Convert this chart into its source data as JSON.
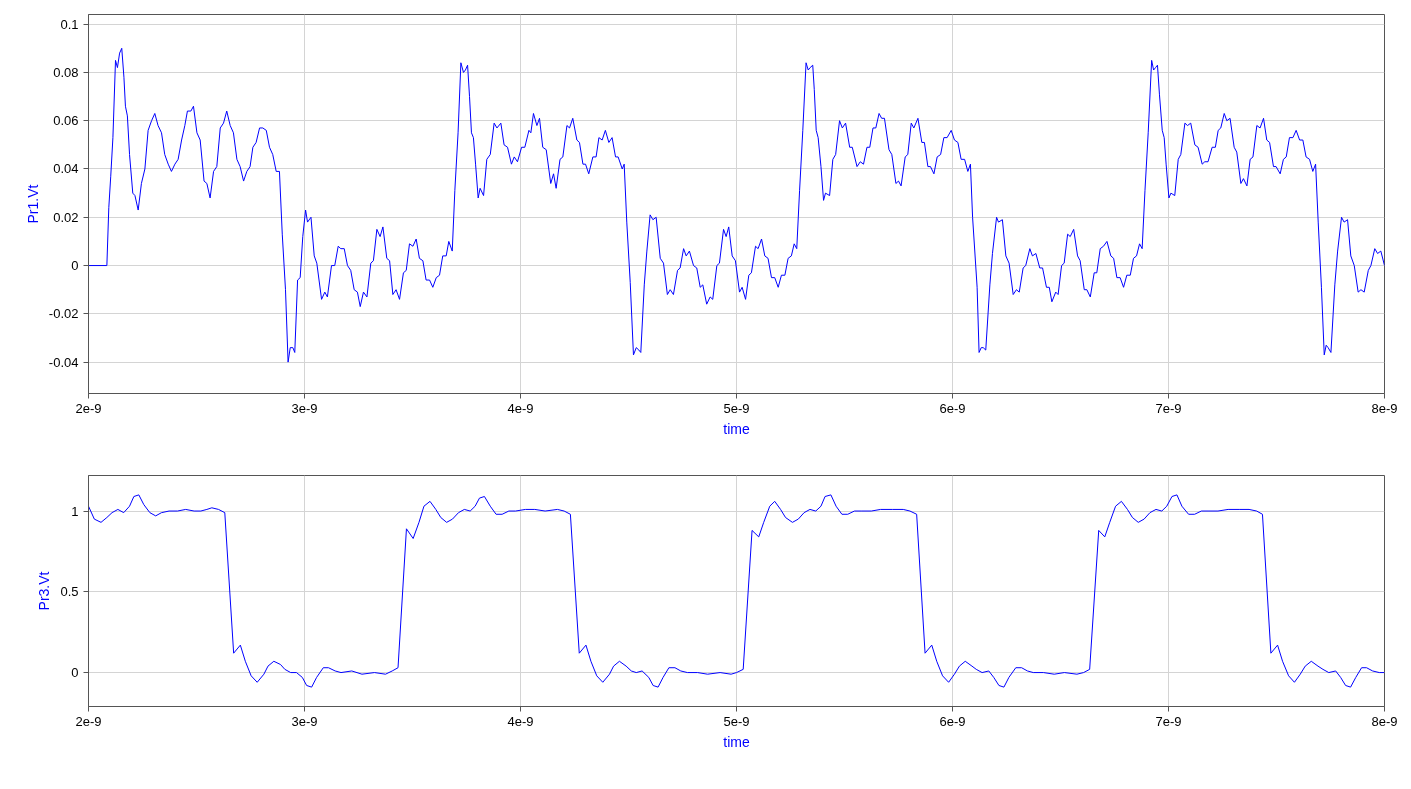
{
  "chart_data": [
    {
      "type": "line",
      "xlabel": "time",
      "ylabel": "Pr1.Vt",
      "x": [
        2e-09,
        2.085e-09,
        2.094e-09,
        2.103e-09,
        2.113e-09,
        2.125e-09,
        2.134e-09,
        2.144e-09,
        2.154e-09,
        2.164e-09,
        2.171e-09,
        2.18e-09,
        2.19e-09,
        2.205e-09,
        2.215e-09,
        2.23e-09,
        2.245e-09,
        2.261e-09,
        2.276e-09,
        2.292e-09,
        2.307e-09,
        2.322e-09,
        2.338e-09,
        2.353e-09,
        2.369e-09,
        2.384e-09,
        2.4e-09,
        2.415e-09,
        2.431e-09,
        2.446e-09,
        2.458e-09,
        2.474e-09,
        2.486e-09,
        2.502e-09,
        2.517e-09,
        2.535e-09,
        2.548e-09,
        2.563e-09,
        2.579e-09,
        2.594e-09,
        2.61e-09,
        2.625e-09,
        2.64e-09,
        2.656e-09,
        2.671e-09,
        2.687e-09,
        2.702e-09,
        2.718e-09,
        2.733e-09,
        2.748e-09,
        2.761e-09,
        2.776e-09,
        2.792e-09,
        2.807e-09,
        2.823e-09,
        2.838e-09,
        2.853e-09,
        2.869e-09,
        2.884e-09,
        2.897e-09,
        2.912e-09,
        2.924e-09,
        2.934e-09,
        2.946e-09,
        2.955e-09,
        2.968e-09,
        2.98e-09,
        2.992e-09,
        3.005e-09,
        3.014e-09,
        3.03e-09,
        3.045e-09,
        3.057e-09,
        3.079e-09,
        3.094e-09,
        3.106e-09,
        3.125e-09,
        3.14e-09,
        3.156e-09,
        3.168e-09,
        3.184e-09,
        3.199e-09,
        3.214e-09,
        3.23e-09,
        3.245e-09,
        3.258e-09,
        3.273e-09,
        3.289e-09,
        3.307e-09,
        3.319e-09,
        3.335e-09,
        3.35e-09,
        3.363e-09,
        3.381e-09,
        3.394e-09,
        3.409e-09,
        3.424e-09,
        3.44e-09,
        3.458e-09,
        3.471e-09,
        3.486e-09,
        3.502e-09,
        3.517e-09,
        3.532e-09,
        3.548e-09,
        3.563e-09,
        3.579e-09,
        3.594e-09,
        3.61e-09,
        3.625e-09,
        3.64e-09,
        3.656e-09,
        3.668e-09,
        3.684e-09,
        3.696e-09,
        3.711e-09,
        3.724e-09,
        3.736e-09,
        3.745e-09,
        3.755e-09,
        3.764e-09,
        3.773e-09,
        3.782e-09,
        3.792e-09,
        3.804e-09,
        3.813e-09,
        3.829e-09,
        3.844e-09,
        3.86e-09,
        3.878e-09,
        3.891e-09,
        3.909e-09,
        3.924e-09,
        3.94e-09,
        3.958e-09,
        3.971e-09,
        3.986e-09,
        4.005e-09,
        4.02e-09,
        4.039e-09,
        4.048e-09,
        4.06e-09,
        4.076e-09,
        4.088e-09,
        4.103e-09,
        4.119e-09,
        4.14e-09,
        4.153e-09,
        4.165e-09,
        4.183e-09,
        4.196e-09,
        4.215e-09,
        4.227e-09,
        4.242e-09,
        4.261e-09,
        4.273e-09,
        4.289e-09,
        4.301e-09,
        4.316e-09,
        4.335e-09,
        4.35e-09,
        4.363e-09,
        4.378e-09,
        4.393e-09,
        4.409e-09,
        4.424e-09,
        4.44e-09,
        4.452e-09,
        4.471e-09,
        4.48e-09,
        4.492e-09,
        4.508e-09,
        4.523e-09,
        4.536e-09,
        4.548e-09,
        4.557e-09,
        4.573e-09,
        4.585e-09,
        4.6e-09,
        4.613e-09,
        4.628e-09,
        4.647e-09,
        4.662e-09,
        4.68e-09,
        4.693e-09,
        4.708e-09,
        4.727e-09,
        4.739e-09,
        4.755e-09,
        4.767e-09,
        4.782e-09,
        4.801e-09,
        4.816e-09,
        4.832e-09,
        4.844e-09,
        4.862e-09,
        4.878e-09,
        4.89e-09,
        4.909e-09,
        4.921e-09,
        4.94e-09,
        4.952e-09,
        4.964e-09,
        4.98e-09,
        4.995e-09,
        5.014e-09,
        5.026e-09,
        5.042e-09,
        5.057e-09,
        5.069e-09,
        5.088e-09,
        5.1e-09,
        5.116e-09,
        5.131e-09,
        5.146e-09,
        5.162e-09,
        5.177e-09,
        5.193e-09,
        5.208e-09,
        5.224e-09,
        5.239e-09,
        5.254e-09,
        5.267e-09,
        5.279e-09,
        5.292e-09,
        5.307e-09,
        5.322e-09,
        5.332e-09,
        5.341e-09,
        5.353e-09,
        5.36e-09,
        5.369e-09,
        5.378e-09,
        5.391e-09,
        5.403e-09,
        5.412e-09,
        5.431e-09,
        5.446e-09,
        5.459e-09,
        5.477e-09,
        5.49e-09,
        5.505e-09,
        5.524e-09,
        5.536e-09,
        5.558e-09,
        5.573e-09,
        5.588e-09,
        5.604e-09,
        5.617e-09,
        5.632e-09,
        5.645e-09,
        5.66e-09,
        5.672e-09,
        5.685e-09,
        5.706e-09,
        5.719e-09,
        5.738e-09,
        5.75e-09,
        5.762e-09,
        5.781e-09,
        5.793e-09,
        5.809e-09,
        5.821e-09,
        5.84e-09,
        5.858e-09,
        5.87e-09,
        5.886e-09,
        5.898e-09,
        5.914e-09,
        5.929e-09,
        5.945e-09,
        5.96e-09,
        5.975e-09,
        5.994e-09,
        6.009e-09,
        6.025e-09,
        6.04e-09,
        6.056e-09,
        6.071e-09,
        6.083e-09,
        6.093e-09,
        6.114e-09,
        6.123e-09,
        6.133e-09,
        6.142e-09,
        6.154e-09,
        6.173e-09,
        6.185e-09,
        6.204e-09,
        6.213e-09,
        6.231e-09,
        6.247e-09,
        6.262e-09,
        6.281e-09,
        6.296e-09,
        6.309e-09,
        6.327e-09,
        6.339e-09,
        6.358e-09,
        6.37e-09,
        6.386e-09,
        6.404e-09,
        6.417e-09,
        6.435e-09,
        6.448e-09,
        6.46e-09,
        6.478e-09,
        6.489e-09,
        6.505e-09,
        6.517e-09,
        6.533e-09,
        6.545e-09,
        6.561e-09,
        6.579e-09,
        6.591e-09,
        6.61e-09,
        6.622e-09,
        6.638e-09,
        6.656e-09,
        6.668e-09,
        6.684e-09,
        6.699e-09,
        6.715e-09,
        6.733e-09,
        6.746e-09,
        6.761e-09,
        6.776e-09,
        6.792e-09,
        6.807e-09,
        6.823e-09,
        6.838e-09,
        6.852e-09,
        6.866e-09,
        6.878e-09,
        6.891e-09,
        6.906e-09,
        6.922e-09,
        6.931e-09,
        6.94e-09,
        6.949e-09,
        6.958e-09,
        6.971e-09,
        6.98e-09,
        6.989e-09,
        7.002e-09,
        7.011e-09,
        7.029e-09,
        7.045e-09,
        7.057e-09,
        7.076e-09,
        7.088e-09,
        7.103e-09,
        7.122e-09,
        7.137e-09,
        7.156e-09,
        7.168e-09,
        7.183e-09,
        7.202e-09,
        7.217e-09,
        7.23e-09,
        7.242e-09,
        7.258e-09,
        7.27e-09,
        7.285e-09,
        7.304e-09,
        7.316e-09,
        7.335e-09,
        7.347e-09,
        7.363e-09,
        7.378e-09,
        7.391e-09,
        7.409e-09,
        7.424e-09,
        7.44e-09,
        7.455e-09,
        7.468e-09,
        7.486e-09,
        7.498e-09,
        7.517e-09,
        7.532e-09,
        7.545e-09,
        7.56e-09,
        7.576e-09,
        7.591e-09,
        7.607e-09,
        7.622e-09,
        7.637e-09,
        7.653e-09,
        7.668e-09,
        7.681e-09,
        7.693e-09,
        7.708e-09,
        7.721e-09,
        7.73e-09,
        7.739e-09,
        7.752e-09,
        7.77e-09,
        7.783e-09,
        7.801e-09,
        7.813e-09,
        7.829e-09,
        7.844e-09,
        7.86e-09,
        7.878e-09,
        7.891e-09,
        7.906e-09,
        7.925e-09,
        7.937e-09,
        7.955e-09,
        7.968e-09,
        7.983e-09,
        8e-09
      ],
      "series": [
        {
          "color": "#0000ff",
          "values": [
            0,
            0,
            0.024,
            0.037,
            0.053,
            0.085,
            0.082,
            0.088,
            0.09,
            0.078,
            0.066,
            0.062,
            0.046,
            0.03,
            0.029,
            0.023,
            0.034,
            0.04,
            0.056,
            0.06,
            0.063,
            0.058,
            0.055,
            0.046,
            0.042,
            0.039,
            0.042,
            0.044,
            0.052,
            0.058,
            0.064,
            0.064,
            0.066,
            0.055,
            0.052,
            0.035,
            0.034,
            0.028,
            0.039,
            0.041,
            0.057,
            0.059,
            0.064,
            0.058,
            0.055,
            0.044,
            0.041,
            0.035,
            0.039,
            0.041,
            0.049,
            0.051,
            0.057,
            0.057,
            0.056,
            0.049,
            0.046,
            0.039,
            0.039,
            0.013,
            -0.01,
            -0.04,
            -0.034,
            -0.034,
            -0.036,
            -0.006,
            -0.005,
            0.012,
            0.023,
            0.018,
            0.02,
            0.004,
            0.001,
            -0.014,
            -0.011,
            -0.013,
            0.0,
            0.0,
            0.008,
            0.007,
            0.007,
            0.0,
            -0.002,
            -0.01,
            -0.011,
            -0.017,
            -0.011,
            -0.013,
            0.001,
            0.002,
            0.015,
            0.012,
            0.016,
            0.003,
            0.002,
            -0.012,
            -0.01,
            -0.014,
            -0.003,
            -0.002,
            0.009,
            0.008,
            0.011,
            0.003,
            0.002,
            -0.006,
            -0.006,
            -0.009,
            -0.005,
            -0.004,
            0.004,
            0.004,
            0.01,
            0.006,
            0.031,
            0.055,
            0.084,
            0.08,
            0.081,
            0.083,
            0.07,
            0.055,
            0.053,
            0.042,
            0.028,
            0.032,
            0.029,
            0.044,
            0.046,
            0.059,
            0.057,
            0.059,
            0.05,
            0.049,
            0.042,
            0.045,
            0.043,
            0.049,
            0.049,
            0.056,
            0.055,
            0.063,
            0.058,
            0.061,
            0.049,
            0.048,
            0.034,
            0.038,
            0.032,
            0.044,
            0.045,
            0.058,
            0.057,
            0.061,
            0.052,
            0.051,
            0.042,
            0.042,
            0.038,
            0.045,
            0.045,
            0.053,
            0.052,
            0.056,
            0.051,
            0.053,
            0.045,
            0.045,
            0.04,
            0.042,
            0.018,
            -0.007,
            -0.037,
            -0.034,
            -0.035,
            -0.036,
            -0.008,
            0.006,
            0.021,
            0.019,
            0.02,
            0.003,
            0.001,
            -0.012,
            -0.01,
            -0.012,
            -0.002,
            -0.001,
            0.007,
            0.004,
            0.006,
            0.0,
            -0.001,
            -0.009,
            -0.008,
            -0.016,
            -0.013,
            -0.014,
            0.0,
            0.001,
            0.015,
            0.012,
            0.016,
            0.004,
            0.002,
            -0.011,
            -0.009,
            -0.014,
            -0.004,
            -0.003,
            0.008,
            0.007,
            0.011,
            0.004,
            0.003,
            -0.005,
            -0.005,
            -0.009,
            -0.004,
            -0.004,
            0.003,
            0.004,
            0.009,
            0.007,
            0.031,
            0.056,
            0.084,
            0.081,
            0.082,
            0.083,
            0.073,
            0.056,
            0.053,
            0.041,
            0.027,
            0.03,
            0.029,
            0.044,
            0.046,
            0.06,
            0.057,
            0.059,
            0.049,
            0.049,
            0.041,
            0.043,
            0.042,
            0.049,
            0.049,
            0.057,
            0.057,
            0.063,
            0.061,
            0.061,
            0.048,
            0.046,
            0.034,
            0.035,
            0.033,
            0.045,
            0.046,
            0.059,
            0.057,
            0.061,
            0.051,
            0.051,
            0.041,
            0.041,
            0.038,
            0.045,
            0.046,
            0.053,
            0.053,
            0.056,
            0.052,
            0.051,
            0.044,
            0.044,
            0.039,
            0.042,
            0.02,
            -0.009,
            -0.036,
            -0.034,
            -0.034,
            -0.035,
            -0.008,
            0.005,
            0.02,
            0.018,
            0.019,
            0.004,
            0.001,
            -0.012,
            -0.01,
            -0.011,
            -0.001,
            0.0,
            0.007,
            0.004,
            0.005,
            -0.001,
            -0.001,
            -0.009,
            -0.009,
            -0.015,
            -0.011,
            -0.012,
            0.0,
            0.001,
            0.013,
            0.012,
            0.015,
            0.004,
            0.002,
            -0.01,
            -0.01,
            -0.013,
            -0.003,
            -0.003,
            0.007,
            0.008,
            0.01,
            0.004,
            0.003,
            -0.005,
            -0.005,
            -0.009,
            -0.004,
            -0.004,
            0.003,
            0.004,
            0.009,
            0.007,
            0.031,
            0.055,
            0.085,
            0.081,
            0.082,
            0.083,
            0.071,
            0.056,
            0.053,
            0.042,
            0.028,
            0.03,
            0.029,
            0.044,
            0.046,
            0.059,
            0.058,
            0.059,
            0.05,
            0.049,
            0.042,
            0.043,
            0.043,
            0.049,
            0.049,
            0.056,
            0.057,
            0.063,
            0.06,
            0.061,
            0.049,
            0.047,
            0.034,
            0.036,
            0.033,
            0.044,
            0.045,
            0.058,
            0.057,
            0.061,
            0.052,
            0.051,
            0.041,
            0.041,
            0.038,
            0.044,
            0.045,
            0.053,
            0.053,
            0.056,
            0.052,
            0.052,
            0.045,
            0.044,
            0.039,
            0.042,
            0.018,
            -0.009,
            -0.037,
            -0.033,
            -0.034,
            -0.036,
            -0.008,
            0.006,
            0.02,
            0.018,
            0.019,
            0.004,
            0.0,
            -0.011,
            -0.01,
            -0.011,
            -0.002,
            0.0,
            0.007,
            0.005,
            0.006,
            0.0
          ]
        }
      ],
      "xlim": [
        2e-09,
        8e-09
      ],
      "ylim": [
        -0.053,
        0.104
      ],
      "xticks": [
        {
          "value": 2e-09,
          "label": "2e-9"
        },
        {
          "value": 3e-09,
          "label": "3e-9"
        },
        {
          "value": 4e-09,
          "label": "4e-9"
        },
        {
          "value": 5e-09,
          "label": "5e-9"
        },
        {
          "value": 6e-09,
          "label": "6e-9"
        },
        {
          "value": 7e-09,
          "label": "7e-9"
        },
        {
          "value": 8e-09,
          "label": "8e-9"
        }
      ],
      "yticks": [
        -0.04,
        -0.02,
        0,
        0.02,
        0.04,
        0.06,
        0.08,
        0.1
      ],
      "grid": true
    },
    {
      "type": "line",
      "xlabel": "time",
      "ylabel": "Pr3.Vt",
      "x": [
        2e-09,
        2.027e-09,
        2.058e-09,
        2.085e-09,
        2.109e-09,
        2.136e-09,
        2.163e-09,
        2.19e-09,
        2.21e-09,
        2.233e-09,
        2.256e-09,
        2.284e-09,
        2.311e-09,
        2.338e-09,
        2.373e-09,
        2.412e-09,
        2.45e-09,
        2.489e-09,
        2.52e-09,
        2.548e-09,
        2.571e-09,
        2.602e-09,
        2.631e-09,
        2.672e-09,
        2.703e-09,
        2.726e-09,
        2.753e-09,
        2.781e-09,
        2.812e-09,
        2.831e-09,
        2.858e-09,
        2.889e-09,
        2.909e-09,
        2.936e-09,
        2.963e-09,
        2.99e-09,
        3.01e-09,
        3.033e-09,
        3.056e-09,
        3.087e-09,
        3.111e-09,
        3.142e-09,
        3.169e-09,
        3.219e-09,
        3.266e-09,
        3.324e-09,
        3.375e-09,
        3.406e-09,
        3.433e-09,
        3.472e-09,
        3.503e-09,
        3.53e-09,
        3.553e-09,
        3.581e-09,
        3.608e-09,
        3.631e-09,
        3.658e-09,
        3.685e-09,
        3.713e-09,
        3.74e-09,
        3.767e-09,
        3.79e-09,
        3.81e-09,
        3.833e-09,
        3.86e-09,
        3.887e-09,
        3.915e-09,
        3.946e-09,
        3.977e-09,
        4.023e-09,
        4.066e-09,
        4.114e-09,
        4.171e-09,
        4.202e-09,
        4.231e-09,
        4.272e-09,
        4.303e-09,
        4.326e-09,
        4.353e-09,
        4.381e-09,
        4.412e-09,
        4.431e-09,
        4.458e-09,
        4.489e-09,
        4.513e-09,
        4.536e-09,
        4.563e-09,
        4.594e-09,
        4.614e-09,
        4.637e-09,
        4.66e-09,
        4.687e-09,
        4.715e-09,
        4.742e-09,
        4.773e-09,
        4.82e-09,
        4.866e-09,
        4.924e-09,
        4.975e-09,
        5e-09,
        5.031e-09,
        5.072e-09,
        5.103e-09,
        5.126e-09,
        5.154e-09,
        5.177e-09,
        5.204e-09,
        5.227e-09,
        5.259e-09,
        5.286e-09,
        5.313e-09,
        5.34e-09,
        5.367e-09,
        5.391e-09,
        5.41e-09,
        5.437e-09,
        5.461e-09,
        5.488e-09,
        5.515e-09,
        5.546e-09,
        5.577e-09,
        5.624e-09,
        5.667e-09,
        5.721e-09,
        5.772e-09,
        5.803e-09,
        5.834e-09,
        5.873e-09,
        5.904e-09,
        5.927e-09,
        5.954e-09,
        5.982e-09,
        6.009e-09,
        6.032e-09,
        6.059e-09,
        6.09e-09,
        6.11e-09,
        6.137e-09,
        6.168e-09,
        6.191e-09,
        6.215e-09,
        6.238e-09,
        6.261e-09,
        6.293e-09,
        6.32e-09,
        6.347e-09,
        6.374e-09,
        6.421e-09,
        6.471e-09,
        6.518e-09,
        6.576e-09,
        6.607e-09,
        6.635e-09,
        6.677e-09,
        6.705e-09,
        6.728e-09,
        6.755e-09,
        6.782e-09,
        6.81e-09,
        6.833e-09,
        6.86e-09,
        6.887e-09,
        6.914e-09,
        6.942e-09,
        6.969e-09,
        6.992e-09,
        7.016e-09,
        7.039e-09,
        7.062e-09,
        7.093e-09,
        7.121e-09,
        7.152e-09,
        7.183e-09,
        7.229e-09,
        7.276e-09,
        7.327e-09,
        7.373e-09,
        7.408e-09,
        7.435e-09,
        7.474e-09,
        7.505e-09,
        7.528e-09,
        7.556e-09,
        7.583e-09,
        7.61e-09,
        7.633e-09,
        7.661e-09,
        7.692e-09,
        7.715e-09,
        7.742e-09,
        7.774e-09,
        7.797e-09,
        7.82e-09,
        7.843e-09,
        7.867e-09,
        7.894e-09,
        7.917e-09,
        7.945e-09,
        7.976e-09,
        8e-09
      ],
      "series": [
        {
          "color": "#0000ff",
          "values": [
            1.03,
            0.95,
            0.93,
            0.96,
            0.99,
            1.01,
            0.99,
            1.03,
            1.09,
            1.1,
            1.04,
            0.99,
            0.97,
            0.99,
            1.0,
            1.0,
            1.01,
            1.0,
            1.0,
            1.01,
            1.02,
            1.01,
            0.99,
            0.12,
            0.17,
            0.07,
            -0.02,
            -0.06,
            -0.01,
            0.04,
            0.07,
            0.05,
            0.02,
            0.0,
            0.0,
            -0.03,
            -0.08,
            -0.09,
            -0.03,
            0.03,
            0.03,
            0.01,
            0.0,
            0.01,
            -0.01,
            0.0,
            -0.01,
            0.01,
            0.03,
            0.89,
            0.83,
            0.93,
            1.03,
            1.06,
            1.01,
            0.96,
            0.93,
            0.95,
            0.99,
            1.01,
            1.0,
            1.03,
            1.08,
            1.09,
            1.03,
            0.98,
            0.98,
            1.0,
            1.0,
            1.01,
            1.01,
            1.0,
            1.01,
            1.0,
            0.98,
            0.12,
            0.17,
            0.07,
            -0.02,
            -0.06,
            -0.01,
            0.04,
            0.07,
            0.04,
            0.01,
            0.0,
            0.01,
            -0.03,
            -0.08,
            -0.09,
            -0.03,
            0.03,
            0.03,
            0.01,
            0.0,
            0.0,
            -0.01,
            0.0,
            -0.01,
            0.0,
            0.02,
            0.88,
            0.84,
            0.93,
            1.03,
            1.06,
            1.01,
            0.96,
            0.93,
            0.95,
            0.99,
            1.01,
            1.0,
            1.03,
            1.09,
            1.1,
            1.03,
            0.98,
            0.98,
            1.0,
            1.0,
            1.0,
            1.01,
            1.01,
            1.01,
            1.0,
            0.98,
            0.12,
            0.17,
            0.07,
            -0.02,
            -0.06,
            -0.01,
            0.04,
            0.07,
            0.04,
            0.02,
            0.0,
            0.01,
            -0.03,
            -0.08,
            -0.09,
            -0.03,
            0.03,
            0.03,
            0.01,
            0.0,
            0.0,
            -0.01,
            0.0,
            -0.01,
            0.0,
            0.02,
            0.88,
            0.84,
            0.93,
            1.03,
            1.06,
            1.01,
            0.96,
            0.93,
            0.95,
            0.99,
            1.01,
            1.0,
            1.03,
            1.09,
            1.1,
            1.03,
            0.98,
            0.98,
            1.0,
            1.0,
            1.0,
            1.01,
            1.01,
            1.01,
            1.0,
            0.98,
            0.12,
            0.17,
            0.07,
            -0.02,
            -0.06,
            -0.01,
            0.04,
            0.07,
            0.04,
            0.02,
            0.0,
            0.01,
            -0.03,
            -0.08,
            -0.09,
            -0.03,
            0.03,
            0.03,
            0.01,
            0.0,
            0.0
          ]
        }
      ],
      "xlim": [
        2e-09,
        8e-09
      ],
      "ylim": [
        -0.21,
        1.22
      ],
      "xticks": [
        {
          "value": 2e-09,
          "label": "2e-9"
        },
        {
          "value": 3e-09,
          "label": "3e-9"
        },
        {
          "value": 4e-09,
          "label": "4e-9"
        },
        {
          "value": 5e-09,
          "label": "5e-9"
        },
        {
          "value": 6e-09,
          "label": "6e-9"
        },
        {
          "value": 7e-09,
          "label": "7e-9"
        },
        {
          "value": 8e-09,
          "label": "8e-9"
        }
      ],
      "yticks": [
        0,
        0.5,
        1
      ],
      "grid": true
    }
  ]
}
